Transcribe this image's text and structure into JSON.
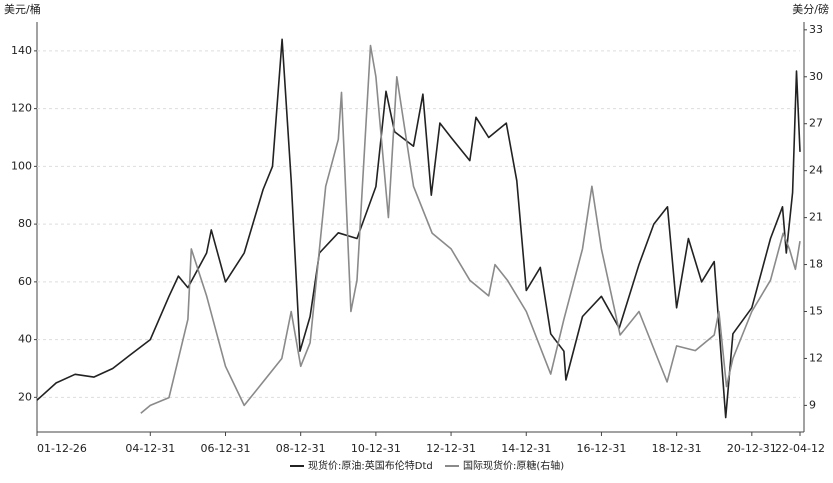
{
  "chart_data": {
    "type": "line",
    "y_axis_label": "美元/桶",
    "y2_axis_label": "美分/磅",
    "xlim": [
      "01-12-26",
      "22-04-12"
    ],
    "xticks": [
      "01-12-26",
      "04-12-31",
      "06-12-31",
      "08-12-31",
      "10-12-31",
      "12-12-31",
      "14-12-31",
      "16-12-31",
      "18-12-31",
      "20-12-31",
      "22-04-12"
    ],
    "ylim": [
      8,
      150
    ],
    "yticks": [
      20,
      40,
      60,
      80,
      100,
      120,
      140
    ],
    "y2lim": [
      7.3,
      33.5
    ],
    "y2ticks": [
      9,
      12,
      15,
      18,
      21,
      24,
      27,
      30,
      33
    ],
    "grid": true,
    "series": [
      {
        "name": "现货价:原油:英国布伦特Dtd",
        "color": "#222222",
        "axis": "y",
        "x": [
          "01-12-26",
          "02-06-30",
          "02-12-31",
          "03-06-30",
          "03-12-31",
          "04-06-30",
          "04-12-31",
          "05-06-30",
          "05-09-30",
          "05-12-31",
          "06-06-30",
          "06-08-15",
          "06-12-31",
          "07-06-30",
          "07-12-31",
          "08-03-31",
          "08-07-03",
          "08-09-30",
          "08-12-24",
          "09-03-31",
          "09-06-30",
          "09-12-31",
          "10-06-30",
          "10-12-31",
          "11-04-08",
          "11-06-30",
          "11-12-31",
          "12-03-31",
          "12-06-22",
          "12-09-14",
          "12-12-31",
          "13-06-30",
          "13-08-30",
          "13-12-31",
          "14-06-20",
          "14-09-30",
          "14-12-31",
          "15-05-15",
          "15-08-25",
          "15-12-31",
          "16-01-20",
          "16-06-30",
          "16-12-31",
          "17-06-21",
          "17-12-31",
          "18-05-22",
          "18-10-03",
          "18-12-31",
          "19-04-24",
          "19-08-30",
          "19-12-31",
          "20-04-21",
          "20-06-30",
          "20-12-31",
          "21-06-30",
          "21-10-25",
          "21-12-01",
          "22-01-31",
          "22-03-08",
          "22-04-12"
        ],
        "values": [
          19,
          25,
          28,
          27,
          30,
          35,
          40,
          55,
          62,
          58,
          70,
          78,
          60,
          70,
          92,
          100,
          144,
          95,
          36,
          48,
          70,
          77,
          75,
          93,
          126,
          112,
          107,
          125,
          90,
          115,
          110,
          102,
          117,
          110,
          115,
          95,
          57,
          65,
          42,
          36,
          26,
          48,
          55,
          44,
          66,
          80,
          86,
          51,
          75,
          60,
          67,
          13,
          42,
          51,
          75,
          86,
          70,
          91,
          133,
          105
        ]
      },
      {
        "name": "国际现货价:原糖(右轴)",
        "color": "#8a8a8a",
        "axis": "y2",
        "x": [
          "04-09-30",
          "04-12-31",
          "05-06-30",
          "05-12-31",
          "06-02-03",
          "06-06-30",
          "06-12-31",
          "07-06-30",
          "07-12-31",
          "08-06-30",
          "08-09-30",
          "08-12-31",
          "09-03-31",
          "09-08-31",
          "09-12-31",
          "10-02-01",
          "10-05-01",
          "10-06-30",
          "10-11-09",
          "10-12-31",
          "11-05-01",
          "11-07-21",
          "11-12-31",
          "12-06-30",
          "12-12-31",
          "13-06-30",
          "13-12-31",
          "14-03-01",
          "14-06-30",
          "14-12-31",
          "15-08-25",
          "15-12-31",
          "16-06-30",
          "16-09-30",
          "16-12-31",
          "17-06-30",
          "17-12-31",
          "18-06-30",
          "18-09-30",
          "18-12-31",
          "19-06-30",
          "19-12-31",
          "20-02-15",
          "20-04-28",
          "20-06-30",
          "20-12-31",
          "21-06-30",
          "21-10-30",
          "21-12-31",
          "22-02-28",
          "22-04-12"
        ],
        "values": [
          8.5,
          9.0,
          9.5,
          14.5,
          19,
          16,
          11.5,
          9,
          10.5,
          12,
          15,
          11.5,
          13,
          23,
          26,
          29,
          15,
          17,
          32,
          30,
          21,
          30,
          23,
          20,
          19,
          17,
          16,
          18,
          17,
          15,
          11,
          14.5,
          19,
          23,
          19,
          13.5,
          15,
          12,
          10.5,
          12.8,
          12.5,
          13.5,
          15,
          10.2,
          12,
          15,
          17,
          20,
          19,
          17.7,
          19.5
        ]
      }
    ]
  }
}
